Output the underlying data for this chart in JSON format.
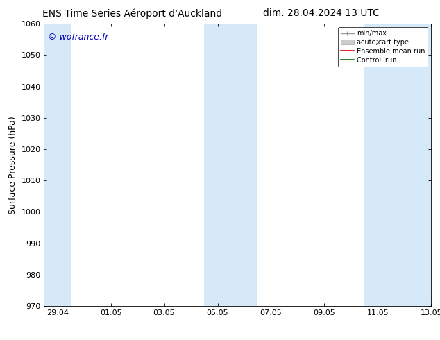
{
  "title_left": "ENS Time Series Aéroport d'Auckland",
  "title_right": "dim. 28.04.2024 13 UTC",
  "ylabel": "Surface Pressure (hPa)",
  "ylim": [
    970,
    1060
  ],
  "yticks": [
    970,
    980,
    990,
    1000,
    1010,
    1020,
    1030,
    1040,
    1050,
    1060
  ],
  "xtick_labels": [
    "29.04",
    "01.05",
    "03.05",
    "05.05",
    "07.05",
    "09.05",
    "11.05",
    "13.05"
  ],
  "xtick_days_offset": [
    0,
    2,
    4,
    6,
    8,
    10,
    12,
    14
  ],
  "watermark": "© wofrance.fr",
  "watermark_color": "#0000bb",
  "background_color": "#ffffff",
  "shade_color": "#d6e9f8",
  "shaded_regions_days": [
    {
      "xstart": -0.5,
      "xend": 0.5
    },
    {
      "xstart": 5.5,
      "xend": 7.5
    },
    {
      "xstart": 11.5,
      "xend": 14.5
    }
  ],
  "legend_entries": [
    {
      "label": "min/max",
      "color": "#999999",
      "lw": 1
    },
    {
      "label": "acute;cart type",
      "color": "#cccccc",
      "lw": 6
    },
    {
      "label": "Ensemble mean run",
      "color": "#dd0000",
      "lw": 1.2
    },
    {
      "label": "Controll run",
      "color": "#006600",
      "lw": 1.2
    }
  ],
  "tick_fontsize": 8,
  "ylabel_fontsize": 9,
  "title_fontsize": 10,
  "watermark_fontsize": 9
}
